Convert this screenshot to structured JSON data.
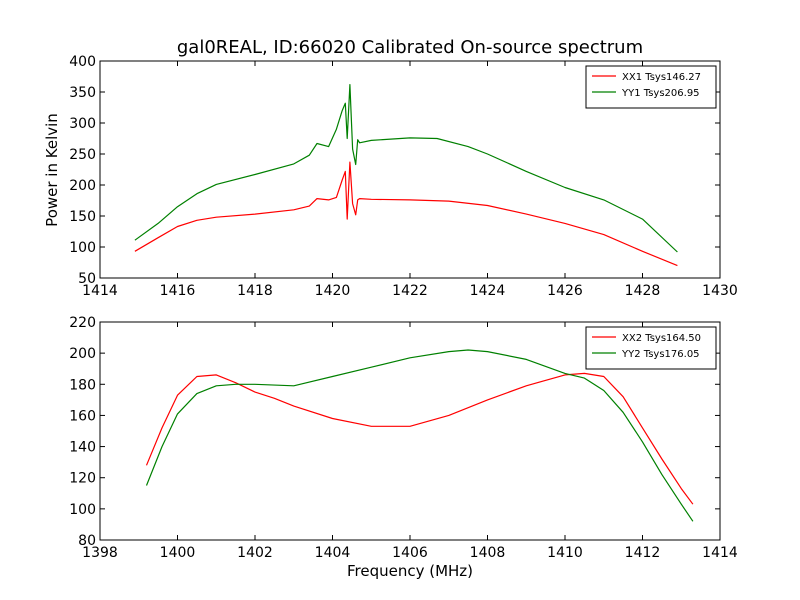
{
  "figure": {
    "title": "gal0REAL, ID:66020 Calibrated On-source spectrum",
    "xlabel": "Frequency (MHz)",
    "ylabel": "Power in Kelvin"
  },
  "chart_data": [
    {
      "type": "line",
      "title": "gal0REAL, ID:66020 Calibrated On-source spectrum",
      "xlabel": "",
      "ylabel": "Power in Kelvin",
      "xlim": [
        1414,
        1430
      ],
      "ylim": [
        50,
        400
      ],
      "xticks": [
        1414,
        1416,
        1418,
        1420,
        1422,
        1424,
        1426,
        1428,
        1430
      ],
      "yticks": [
        50,
        100,
        150,
        200,
        250,
        300,
        350,
        400
      ],
      "legend": "top-right",
      "grid": false,
      "series": [
        {
          "name": "XX1 Tsys146.27",
          "color": "#ff0000",
          "x": [
            1414.9,
            1415.5,
            1416,
            1416.5,
            1417,
            1418,
            1419,
            1419.4,
            1419.6,
            1419.9,
            1420.1,
            1420.25,
            1420.33,
            1420.38,
            1420.45,
            1420.52,
            1420.6,
            1420.65,
            1420.7,
            1421,
            1422,
            1423,
            1424,
            1425,
            1426,
            1427,
            1428,
            1428.9
          ],
          "y": [
            93,
            115,
            133,
            143,
            148,
            153,
            160,
            166,
            178,
            176,
            180,
            208,
            222,
            145,
            237,
            170,
            152,
            176,
            178,
            177,
            176,
            174,
            167,
            153,
            138,
            120,
            93,
            70
          ]
        },
        {
          "name": "YY1 Tsys206.95",
          "color": "#008000",
          "x": [
            1414.9,
            1415.5,
            1416,
            1416.5,
            1417,
            1418,
            1419,
            1419.4,
            1419.6,
            1419.9,
            1420.1,
            1420.25,
            1420.33,
            1420.38,
            1420.45,
            1420.52,
            1420.6,
            1420.65,
            1420.7,
            1421,
            1422,
            1422.7,
            1423.5,
            1424,
            1425,
            1426,
            1427,
            1428,
            1428.9
          ],
          "y": [
            111,
            138,
            165,
            186,
            201,
            217,
            234,
            248,
            267,
            262,
            290,
            320,
            332,
            275,
            362,
            258,
            233,
            273,
            268,
            272,
            276,
            275,
            262,
            250,
            222,
            196,
            176,
            145,
            92
          ]
        }
      ]
    },
    {
      "type": "line",
      "title": "",
      "xlabel": "Frequency (MHz)",
      "ylabel": "",
      "xlim": [
        1398,
        1414
      ],
      "ylim": [
        80,
        220
      ],
      "xticks": [
        1398,
        1400,
        1402,
        1404,
        1406,
        1408,
        1410,
        1412,
        1414
      ],
      "yticks": [
        80,
        100,
        120,
        140,
        160,
        180,
        200,
        220
      ],
      "legend": "top-right",
      "grid": false,
      "series": [
        {
          "name": "XX2 Tsys164.50",
          "color": "#ff0000",
          "x": [
            1399.2,
            1399.6,
            1400,
            1400.5,
            1401,
            1401.5,
            1402,
            1402.5,
            1403,
            1404,
            1405,
            1406,
            1407,
            1408,
            1409,
            1410,
            1410.5,
            1411,
            1411.5,
            1412,
            1412.5,
            1413,
            1413.3
          ],
          "y": [
            128,
            152,
            173,
            185,
            186,
            181,
            175,
            171,
            166,
            158,
            153,
            153,
            160,
            170,
            179,
            186,
            187,
            185,
            172,
            152,
            132,
            113,
            103
          ]
        },
        {
          "name": "YY2 Tsys176.05",
          "color": "#008000",
          "x": [
            1399.2,
            1399.6,
            1400,
            1400.5,
            1401,
            1401.5,
            1402,
            1403,
            1404,
            1405,
            1406,
            1407,
            1407.5,
            1408,
            1409,
            1410,
            1410.5,
            1411,
            1411.5,
            1412,
            1412.5,
            1413,
            1413.3
          ],
          "y": [
            115,
            140,
            161,
            174,
            179,
            180,
            180,
            179,
            185,
            191,
            197,
            201,
            202,
            201,
            196,
            187,
            184,
            176,
            162,
            143,
            122,
            103,
            92
          ]
        }
      ]
    }
  ]
}
